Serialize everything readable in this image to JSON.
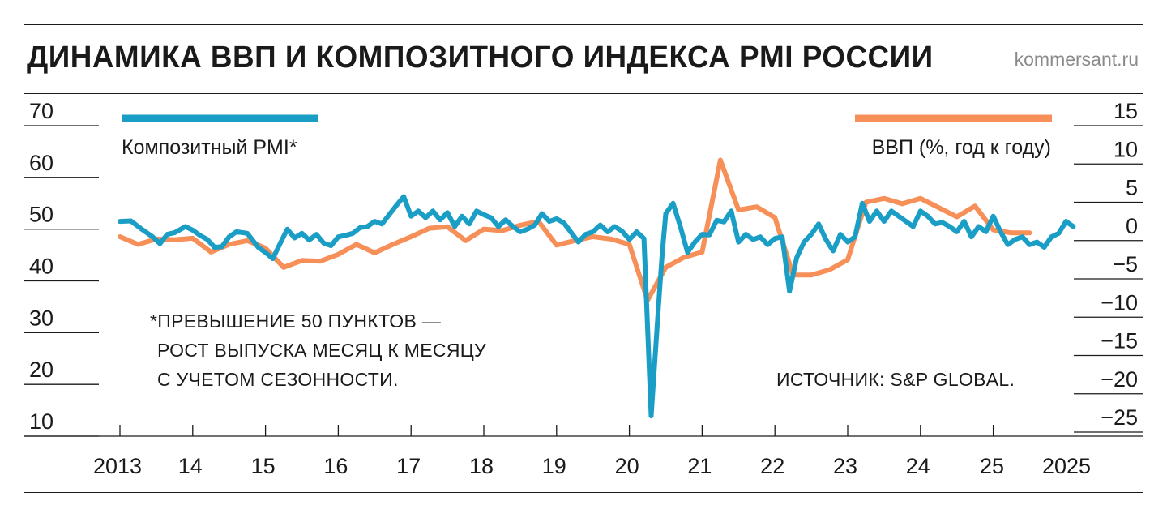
{
  "header": {
    "title": "ДИНАМИКА ВВП И КОМПОЗИТНОГО ИНДЕКСА PMI РОССИИ",
    "brand": "kommersant.ru"
  },
  "notes": {
    "footnote_lines": [
      "*ПРЕВЫШЕНИЕ 50 ПУНКТОВ —",
      "РОСТ ВЫПУСКА МЕСЯЦ К МЕСЯЦУ",
      "С УЧЕТОМ СЕЗОННОСТИ."
    ],
    "source": "ИСТОЧНИК: S&P GLOBAL."
  },
  "colors": {
    "pmi": "#1a9ec6",
    "gdp": "#f79058",
    "text": "#1a1a1a",
    "brand": "#8a8a8a"
  },
  "chart_data": {
    "type": "line",
    "left_axis": {
      "ticks": [
        70,
        60,
        50,
        40,
        30,
        20,
        10
      ],
      "ylim": [
        10,
        70
      ]
    },
    "right_axis": {
      "ticks": [
        "15",
        "10",
        "5",
        "0",
        "−5",
        "−10",
        "−15",
        "−20",
        "−25"
      ],
      "ylim": [
        -25,
        15
      ]
    },
    "x_ticks": [
      "2013",
      "14",
      "15",
      "16",
      "17",
      "18",
      "19",
      "20",
      "21",
      "22",
      "23",
      "24",
      "25",
      "2025"
    ],
    "series": [
      {
        "name": "Композитный PMI*",
        "axis": "left",
        "x": [
          2013.0,
          2013.15,
          2013.3,
          2013.45,
          2013.55,
          2013.65,
          2013.75,
          2013.9,
          2014.0,
          2014.1,
          2014.2,
          2014.3,
          2014.4,
          2014.5,
          2014.6,
          2014.75,
          2014.9,
          2015.0,
          2015.1,
          2015.2,
          2015.3,
          2015.4,
          2015.5,
          2015.6,
          2015.7,
          2015.8,
          2015.9,
          2016.0,
          2016.1,
          2016.2,
          2016.3,
          2016.4,
          2016.5,
          2016.6,
          2016.8,
          2016.9,
          2017.0,
          2017.1,
          2017.2,
          2017.3,
          2017.4,
          2017.5,
          2017.6,
          2017.7,
          2017.8,
          2017.9,
          2018.0,
          2018.1,
          2018.2,
          2018.3,
          2018.4,
          2018.5,
          2018.6,
          2018.7,
          2018.8,
          2018.9,
          2019.0,
          2019.1,
          2019.3,
          2019.4,
          2019.5,
          2019.6,
          2019.7,
          2019.8,
          2019.9,
          2020.0,
          2020.1,
          2020.2,
          2020.3,
          2020.4,
          2020.45,
          2020.5,
          2020.6,
          2020.7,
          2020.8,
          2020.9,
          2021.0,
          2021.1,
          2021.2,
          2021.3,
          2021.4,
          2021.5,
          2021.6,
          2021.7,
          2021.8,
          2021.9,
          2022.0,
          2022.1,
          2022.2,
          2022.3,
          2022.4,
          2022.5,
          2022.6,
          2022.7,
          2022.8,
          2022.9,
          2023.0,
          2023.1,
          2023.2,
          2023.3,
          2023.4,
          2023.5,
          2023.6,
          2023.7,
          2023.8,
          2023.9,
          2024.0,
          2024.1,
          2024.2,
          2024.3,
          2024.4,
          2024.5,
          2024.6,
          2024.7,
          2024.8,
          2024.9,
          2025.0,
          2025.1,
          2025.2,
          2025.3,
          2025.4,
          2025.5,
          2025.6,
          2025.7,
          2025.8,
          2025.9,
          2026.0,
          2026.1
        ],
        "values": [
          51.5,
          51.6,
          50.0,
          48.5,
          47.2,
          49.0,
          49.3,
          50.5,
          49.8,
          48.8,
          48.0,
          46.5,
          46.6,
          48.5,
          49.5,
          49.2,
          46.5,
          45.5,
          44.3,
          47.2,
          50.0,
          48.3,
          49.2,
          47.9,
          49.0,
          47.3,
          46.8,
          48.5,
          48.8,
          49.2,
          50.3,
          50.5,
          51.5,
          51.0,
          54.6,
          56.3,
          52.5,
          53.5,
          52.2,
          53.5,
          51.8,
          53.2,
          50.5,
          52.5,
          51.0,
          53.5,
          52.8,
          52.2,
          50.5,
          51.8,
          50.5,
          49.5,
          50.0,
          50.8,
          53.0,
          51.5,
          52.0,
          51.2,
          47.5,
          49.0,
          49.5,
          50.8,
          49.5,
          50.5,
          49.6,
          48.0,
          49.5,
          48.2,
          13.9,
          35.0,
          45.0,
          53.0,
          55.0,
          50.5,
          45.5,
          47.5,
          49.0,
          48.9,
          51.7,
          51.4,
          53.5,
          47.5,
          49.0,
          48.0,
          48.5,
          47.0,
          48.2,
          48.5,
          38.0,
          44.5,
          47.5,
          49.0,
          51.0,
          48.0,
          45.8,
          49.0,
          47.5,
          48.5,
          55.0,
          51.5,
          53.5,
          51.5,
          53.5,
          52.5,
          51.5,
          50.5,
          53.5,
          52.5,
          51.0,
          51.3,
          50.5,
          49.5,
          51.5,
          48.5,
          50.5,
          49.5,
          52.5,
          49.5,
          47.0,
          48.0,
          48.5,
          47.0,
          47.5,
          46.5,
          48.5,
          49.2,
          51.5,
          50.5
        ]
      },
      {
        "name": "ВВП (%, год к году)",
        "axis": "right",
        "x": [
          2013.0,
          2013.25,
          2013.5,
          2013.75,
          2014.0,
          2014.25,
          2014.5,
          2014.75,
          2015.0,
          2015.25,
          2015.5,
          2015.75,
          2016.0,
          2016.25,
          2016.5,
          2016.75,
          2017.0,
          2017.25,
          2017.5,
          2017.75,
          2018.0,
          2018.25,
          2018.5,
          2018.75,
          2019.0,
          2019.25,
          2019.5,
          2019.75,
          2020.0,
          2020.25,
          2020.5,
          2020.75,
          2021.0,
          2021.25,
          2021.5,
          2021.75,
          2022.0,
          2022.25,
          2022.5,
          2022.75,
          2023.0,
          2023.25,
          2023.5,
          2023.75,
          2024.0,
          2024.25,
          2024.5,
          2024.75,
          2025.0,
          2025.25,
          2025.5
        ],
        "values": [
          0.5,
          -0.5,
          0.2,
          0.1,
          0.3,
          -1.5,
          -0.5,
          0.0,
          -1.0,
          -3.5,
          -2.6,
          -2.7,
          -1.8,
          -0.5,
          -1.6,
          -0.5,
          0.5,
          1.6,
          1.8,
          0.0,
          1.5,
          1.3,
          2.0,
          2.5,
          -0.6,
          0.0,
          0.5,
          0.2,
          -0.5,
          -7.8,
          -3.5,
          -2.2,
          -1.5,
          10.5,
          4.0,
          4.4,
          3.0,
          -4.5,
          -4.5,
          -3.8,
          -2.5,
          5.0,
          5.5,
          4.8,
          5.5,
          4.3,
          3.1,
          4.5,
          1.4,
          1.0,
          1.0
        ]
      }
    ]
  }
}
